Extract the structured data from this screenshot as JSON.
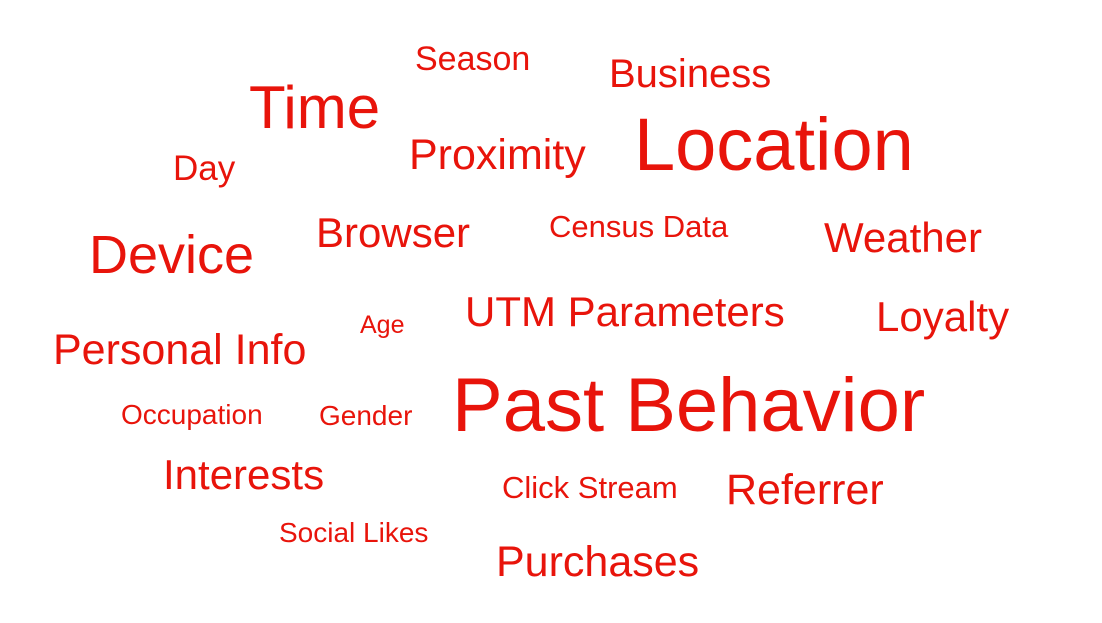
{
  "word_cloud": {
    "color": "#e8140b",
    "words": [
      {
        "id": "season",
        "text": "Season"
      },
      {
        "id": "business",
        "text": "Business"
      },
      {
        "id": "time",
        "text": "Time"
      },
      {
        "id": "location",
        "text": "Location"
      },
      {
        "id": "proximity",
        "text": "Proximity"
      },
      {
        "id": "day",
        "text": "Day"
      },
      {
        "id": "browser",
        "text": "Browser"
      },
      {
        "id": "census",
        "text": "Census Data"
      },
      {
        "id": "weather",
        "text": "Weather"
      },
      {
        "id": "device",
        "text": "Device"
      },
      {
        "id": "utm",
        "text": "UTM Parameters"
      },
      {
        "id": "loyalty",
        "text": "Loyalty"
      },
      {
        "id": "age",
        "text": "Age"
      },
      {
        "id": "personal",
        "text": "Personal Info"
      },
      {
        "id": "past",
        "text": "Past Behavior"
      },
      {
        "id": "occupation",
        "text": "Occupation"
      },
      {
        "id": "gender",
        "text": "Gender"
      },
      {
        "id": "interests",
        "text": "Interests"
      },
      {
        "id": "clickstream",
        "text": "Click Stream"
      },
      {
        "id": "referrer",
        "text": "Referrer"
      },
      {
        "id": "social",
        "text": "Social Likes"
      },
      {
        "id": "purchases",
        "text": "Purchases"
      }
    ]
  }
}
